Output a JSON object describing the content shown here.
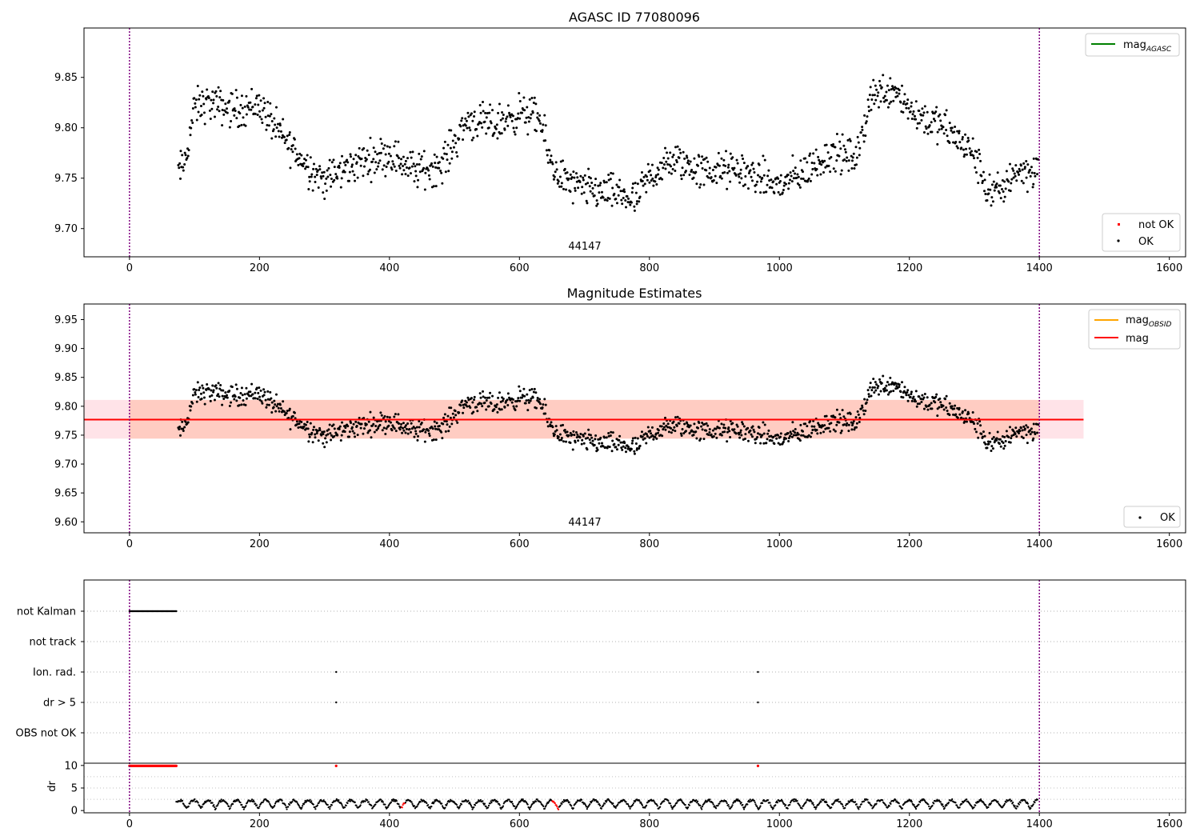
{
  "chart_data": [
    {
      "panel": "top",
      "type": "scatter",
      "title": "AGASC ID 77080096",
      "xlim": [
        -70,
        1625
      ],
      "ylim": [
        9.672,
        9.899
      ],
      "xticks": [
        0,
        200,
        400,
        600,
        800,
        1000,
        1200,
        1400,
        1600
      ],
      "yticks": [
        9.7,
        9.75,
        9.8,
        9.85
      ],
      "ytick_labels": [
        "9.70",
        "9.75",
        "9.80",
        "9.85"
      ],
      "annotation": "44147",
      "annotation_x": 700,
      "vlines": [
        0,
        1400
      ],
      "vline_color": "#800080",
      "legend_upper": [
        {
          "label": "mag",
          "sub": "AGASC",
          "color": "#008000",
          "kind": "line"
        }
      ],
      "legend_lower": [
        {
          "label": "not OK",
          "color": "#ff0000",
          "kind": "dot"
        },
        {
          "label": "OK",
          "color": "#000000",
          "kind": "dot"
        }
      ],
      "series": [
        {
          "name": "OK",
          "color": "#000000",
          "generator": {
            "x_start": 75,
            "x_end": 1398,
            "n": 1280,
            "noise": 0.009,
            "knots_x": [
              75,
              85,
              100,
              120,
              160,
              200,
              230,
              270,
              300,
              350,
              400,
              440,
              480,
              520,
              560,
              600,
              630,
              650,
              680,
              720,
              760,
              780,
              800,
              840,
              880,
              940,
              1000,
              1040,
              1080,
              1120,
              1140,
              1180,
              1200,
              1260,
              1300,
              1320,
              1340,
              1360,
              1398
            ],
            "knots_y": [
              9.755,
              9.765,
              9.82,
              9.825,
              9.818,
              9.823,
              9.795,
              9.765,
              9.748,
              9.765,
              9.775,
              9.757,
              9.763,
              9.808,
              9.802,
              9.815,
              9.81,
              9.762,
              9.742,
              9.737,
              9.733,
              9.727,
              9.752,
              9.768,
              9.757,
              9.758,
              9.742,
              9.757,
              9.775,
              9.77,
              9.832,
              9.84,
              9.818,
              9.797,
              9.773,
              9.738,
              9.735,
              9.757,
              9.758
            ]
          }
        }
      ]
    },
    {
      "panel": "middle",
      "type": "scatter",
      "title": "Magnitude Estimates",
      "xlim": [
        -70,
        1625
      ],
      "ylim": [
        9.581,
        9.977
      ],
      "xticks": [
        0,
        200,
        400,
        600,
        800,
        1000,
        1200,
        1400,
        1600
      ],
      "yticks": [
        9.6,
        9.65,
        9.7,
        9.75,
        9.8,
        9.85,
        9.9,
        9.95
      ],
      "ytick_labels": [
        "9.60",
        "9.65",
        "9.70",
        "9.75",
        "9.80",
        "9.85",
        "9.90",
        "9.95"
      ],
      "annotation": "44147",
      "annotation_x": 700,
      "vlines": [
        0,
        1400
      ],
      "vline_color": "#800080",
      "mag_obsid": 9.777,
      "mag": 9.777,
      "band": [
        9.744,
        9.811
      ],
      "band_x": [
        -70,
        1468
      ],
      "legend_upper": [
        {
          "label": "mag",
          "sub": "OBSID",
          "color": "#ffa500",
          "kind": "line"
        },
        {
          "label": "mag",
          "sub": "",
          "color": "#ff0000",
          "kind": "line"
        }
      ],
      "legend_lower": [
        {
          "label": "OK",
          "color": "#000000",
          "kind": "dot"
        }
      ]
    },
    {
      "panel": "bottom-flags",
      "type": "scatter",
      "xlim": [
        -70,
        1625
      ],
      "categories": [
        "not Kalman",
        "not track",
        "Ion. rad.",
        "dr > 5",
        "OBS not OK"
      ],
      "flag_points": {
        "not Kalman": {
          "x_range": [
            0,
            72
          ],
          "n": 50
        },
        "not track": {
          "x": []
        },
        "Ion. rad.": {
          "x": [
            318,
            967
          ]
        },
        "dr > 5": {
          "x": [
            318,
            967
          ]
        },
        "OBS not OK": {
          "x": []
        }
      },
      "vlines": [
        0,
        1400
      ]
    },
    {
      "panel": "bottom-dr",
      "type": "scatter",
      "ylabel": "dr",
      "xlim": [
        -70,
        1625
      ],
      "ylim": [
        -0.5,
        10.5
      ],
      "xticks": [
        0,
        200,
        400,
        600,
        800,
        1000,
        1200,
        1400,
        1600
      ],
      "yticks": [
        0,
        5,
        10
      ],
      "high_dr_x_range": [
        0,
        72
      ],
      "high_dr_value": 9.9,
      "high_dr_extra_x": [
        318,
        967
      ],
      "red_segments_x": [
        [
          418,
          424
        ],
        [
          650,
          660
        ]
      ],
      "dr_x_start": 72,
      "dr_x_end": 1398,
      "vlines": [
        0,
        1400
      ]
    }
  ]
}
